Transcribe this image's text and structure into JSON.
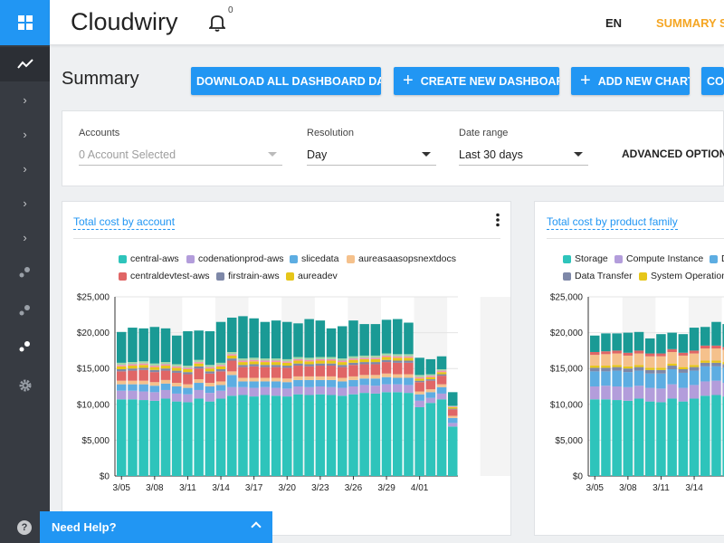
{
  "app": {
    "title": "Cloudwiry",
    "notification_count": "0",
    "language": "EN",
    "summary_link": "SUMMARY SA"
  },
  "page": {
    "title": "Summary"
  },
  "buttons": {
    "download": "DOWNLOAD ALL DASHBOARD DATA",
    "create": "CREATE NEW DASHBOARD",
    "add_chart": "ADD NEW CHART",
    "more": "CO"
  },
  "filters": {
    "accounts_label": "Accounts",
    "accounts_value": "0 Account Selected",
    "resolution_label": "Resolution",
    "resolution_value": "Day",
    "date_label": "Date range",
    "date_value": "Last 30 days",
    "advanced": "ADVANCED OPTIONS"
  },
  "help": {
    "label": "Need Help?"
  },
  "sidebar": {
    "icons": [
      "grid-icon",
      "trend-icon",
      "chevron-right-icon",
      "chevron-right-icon",
      "chevron-right-icon",
      "chevron-right-icon",
      "chevron-right-icon",
      "dots-icon",
      "dots-icon",
      "dots-icon",
      "gear-icon"
    ]
  },
  "colors": {
    "primary": "#2196f3",
    "accent": "#f5a623",
    "rail": "#373b42"
  },
  "chart_data": [
    {
      "type": "bar",
      "stacked": true,
      "title": "Total cost by account",
      "ylim": [
        0,
        25000
      ],
      "yticks": [
        "$25,000",
        "$20,000",
        "$15,000",
        "$10,000",
        "$5,000",
        "$0"
      ],
      "xticks": [
        "3/05",
        "3/08",
        "3/11",
        "3/14",
        "3/17",
        "3/20",
        "3/23",
        "3/26",
        "3/29",
        "4/01"
      ],
      "series": [
        {
          "name": "central-aws",
          "color": "#2ec4bb",
          "values": [
            10700,
            10700,
            10600,
            10500,
            10800,
            10400,
            10300,
            10800,
            10400,
            10800,
            11200,
            11300,
            11100,
            11300,
            11200,
            11100,
            11400,
            11300,
            11400,
            11300,
            11200,
            11400,
            11600,
            11500,
            11700,
            11700,
            11600,
            9600,
            10200,
            10700,
            6900
          ]
        },
        {
          "name": "codenationprod-aws",
          "color": "#b39ddb",
          "values": [
            1200,
            1200,
            1200,
            1200,
            1200,
            1100,
            1100,
            1200,
            1200,
            1100,
            1200,
            1100,
            1200,
            1100,
            1100,
            1100,
            1100,
            1100,
            1100,
            1100,
            1100,
            1100,
            1100,
            1100,
            1100,
            1100,
            1100,
            900,
            700,
            800,
            500
          ]
        },
        {
          "name": "slicedata",
          "color": "#5dade2",
          "values": [
            900,
            900,
            1000,
            900,
            900,
            1000,
            900,
            1000,
            900,
            800,
            1700,
            800,
            900,
            800,
            900,
            900,
            900,
            1000,
            900,
            1000,
            900,
            900,
            900,
            1000,
            1000,
            900,
            1000,
            900,
            800,
            900,
            700
          ]
        },
        {
          "name": "aureasaasopsnextdocs",
          "color": "#f5c18c",
          "values": [
            500,
            500,
            500,
            500,
            500,
            500,
            500,
            500,
            500,
            500,
            500,
            500,
            500,
            500,
            500,
            500,
            500,
            500,
            500,
            500,
            500,
            500,
            500,
            500,
            500,
            500,
            500,
            400,
            400,
            400,
            300
          ]
        },
        {
          "name": "centraldevtest-aws",
          "color": "#e06666",
          "values": [
            1300,
            1400,
            1500,
            1400,
            1300,
            1400,
            1400,
            1500,
            1300,
            1400,
            1500,
            1500,
            1600,
            1500,
            1500,
            1500,
            1500,
            1400,
            1500,
            1500,
            1500,
            1600,
            1500,
            1500,
            1600,
            1600,
            1600,
            1300,
            1200,
            1200,
            900
          ]
        },
        {
          "name": "firstrain-aws",
          "color": "#7e88a8",
          "values": [
            300,
            300,
            300,
            300,
            300,
            300,
            300,
            300,
            300,
            300,
            300,
            300,
            300,
            300,
            300,
            300,
            300,
            300,
            300,
            300,
            300,
            300,
            300,
            300,
            300,
            300,
            300,
            200,
            200,
            200,
            100
          ]
        },
        {
          "name": "aureadev",
          "color": "#e6c619",
          "values": [
            400,
            400,
            400,
            400,
            400,
            400,
            400,
            400,
            400,
            400,
            400,
            400,
            400,
            400,
            400,
            400,
            400,
            400,
            400,
            400,
            400,
            400,
            400,
            400,
            400,
            400,
            400,
            300,
            300,
            300,
            200
          ]
        },
        {
          "name": "",
          "color": "#f58fb2",
          "values": [
            200,
            200,
            200,
            200,
            200,
            200,
            200,
            200,
            200,
            200,
            200,
            200,
            200,
            200,
            200,
            200,
            200,
            200,
            200,
            200,
            200,
            200,
            200,
            200,
            200,
            200,
            200,
            200,
            200,
            200,
            100
          ]
        },
        {
          "name": "",
          "color": "#a5d6a7",
          "values": [
            300,
            300,
            300,
            300,
            300,
            300,
            300,
            300,
            300,
            300,
            300,
            300,
            300,
            300,
            300,
            300,
            300,
            300,
            300,
            300,
            300,
            300,
            300,
            300,
            300,
            300,
            300,
            300,
            200,
            200,
            100
          ]
        },
        {
          "name": "",
          "color": "#1a9a95",
          "values": [
            4300,
            4800,
            4600,
            5100,
            4700,
            4000,
            4800,
            4100,
            4700,
            5700,
            4800,
            5900,
            5500,
            5100,
            5300,
            5200,
            4700,
            5400,
            5100,
            4000,
            4500,
            5000,
            4400,
            4400,
            4700,
            4900,
            4400,
            2400,
            2100,
            1800,
            1900
          ]
        }
      ]
    },
    {
      "type": "bar",
      "stacked": true,
      "title": "Total cost by product family",
      "ylim": [
        0,
        25000
      ],
      "yticks": [
        "$25,000",
        "$20,000",
        "$15,000",
        "$10,000",
        "$5,000",
        "$0"
      ],
      "xticks": [
        "3/05",
        "3/08",
        "3/11",
        "3/14"
      ],
      "series": [
        {
          "name": "Storage",
          "color": "#2ec4bb",
          "values": [
            10700,
            10700,
            10600,
            10500,
            10800,
            10400,
            10300,
            10800,
            10400,
            10800,
            11200,
            11300,
            11100,
            11300,
            11200,
            11100
          ]
        },
        {
          "name": "Compute Instance",
          "color": "#b39ddb",
          "values": [
            1800,
            1900,
            1900,
            1900,
            1800,
            1900,
            1900,
            2000,
            1900,
            1900,
            2000,
            2000,
            1900,
            2000,
            2000,
            2200
          ]
        },
        {
          "name": "D",
          "color": "#5dade2",
          "values": [
            2100,
            2000,
            2200,
            2100,
            2100,
            2000,
            2100,
            2100,
            2100,
            2000,
            2100,
            2000,
            2100,
            2000,
            2000,
            2000
          ]
        },
        {
          "name": "Data Transfer",
          "color": "#7e88a8",
          "values": [
            500,
            500,
            500,
            500,
            500,
            500,
            500,
            500,
            500,
            500,
            500,
            500,
            500,
            500,
            500,
            500
          ]
        },
        {
          "name": "System Operation",
          "color": "#e6c619",
          "values": [
            300,
            300,
            300,
            300,
            300,
            300,
            300,
            300,
            300,
            300,
            300,
            300,
            300,
            300,
            300,
            300
          ]
        },
        {
          "name": "",
          "color": "#f5c18c",
          "values": [
            1500,
            1600,
            1600,
            1500,
            1600,
            1600,
            1600,
            1600,
            1600,
            1600,
            1700,
            1700,
            1700,
            1700,
            1800,
            1800
          ]
        },
        {
          "name": "",
          "color": "#e06666",
          "values": [
            400,
            400,
            400,
            400,
            400,
            400,
            400,
            400,
            400,
            400,
            400,
            400,
            400,
            400,
            400,
            400
          ]
        },
        {
          "name": "",
          "color": "#1a9a95",
          "values": [
            2300,
            2500,
            2400,
            2800,
            2600,
            2100,
            2700,
            2300,
            2600,
            3200,
            2600,
            3300,
            3200,
            2900,
            3100,
            3000
          ]
        }
      ]
    }
  ]
}
